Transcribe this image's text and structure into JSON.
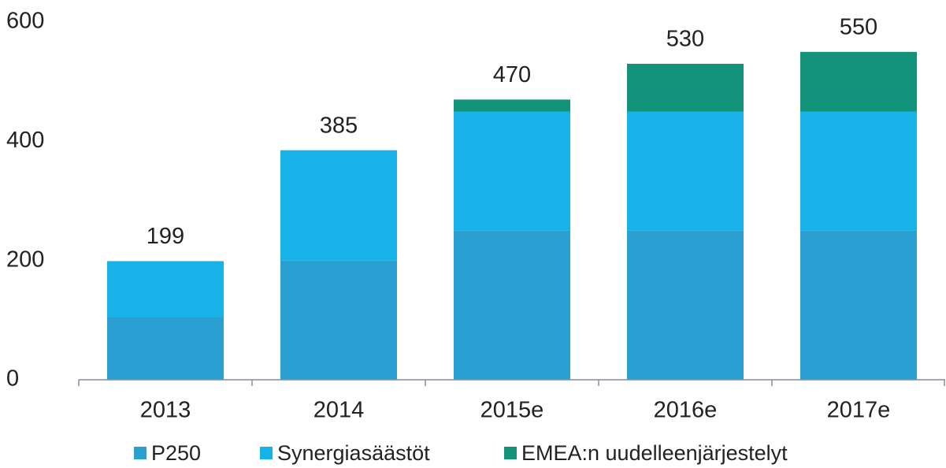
{
  "chart_data": {
    "type": "bar",
    "stacked": true,
    "categories": [
      "2013",
      "2014",
      "2015e",
      "2016e",
      "2017e"
    ],
    "series": [
      {
        "name": "P250",
        "color": "#2a9fd1",
        "values": [
          105,
          200,
          250,
          250,
          250
        ]
      },
      {
        "name": "Synergiasäästöt",
        "color": "#16b2e8",
        "values": [
          94,
          185,
          200,
          200,
          200
        ]
      },
      {
        "name": "EMEA:n uudelleenjärjestelyt",
        "color": "#14937b",
        "values": [
          0,
          0,
          20,
          80,
          100
        ]
      }
    ],
    "totals": [
      199,
      385,
      470,
      530,
      550
    ],
    "ylim": [
      0,
      600
    ],
    "yticks": [
      0,
      200,
      400,
      600
    ],
    "grid": false
  }
}
